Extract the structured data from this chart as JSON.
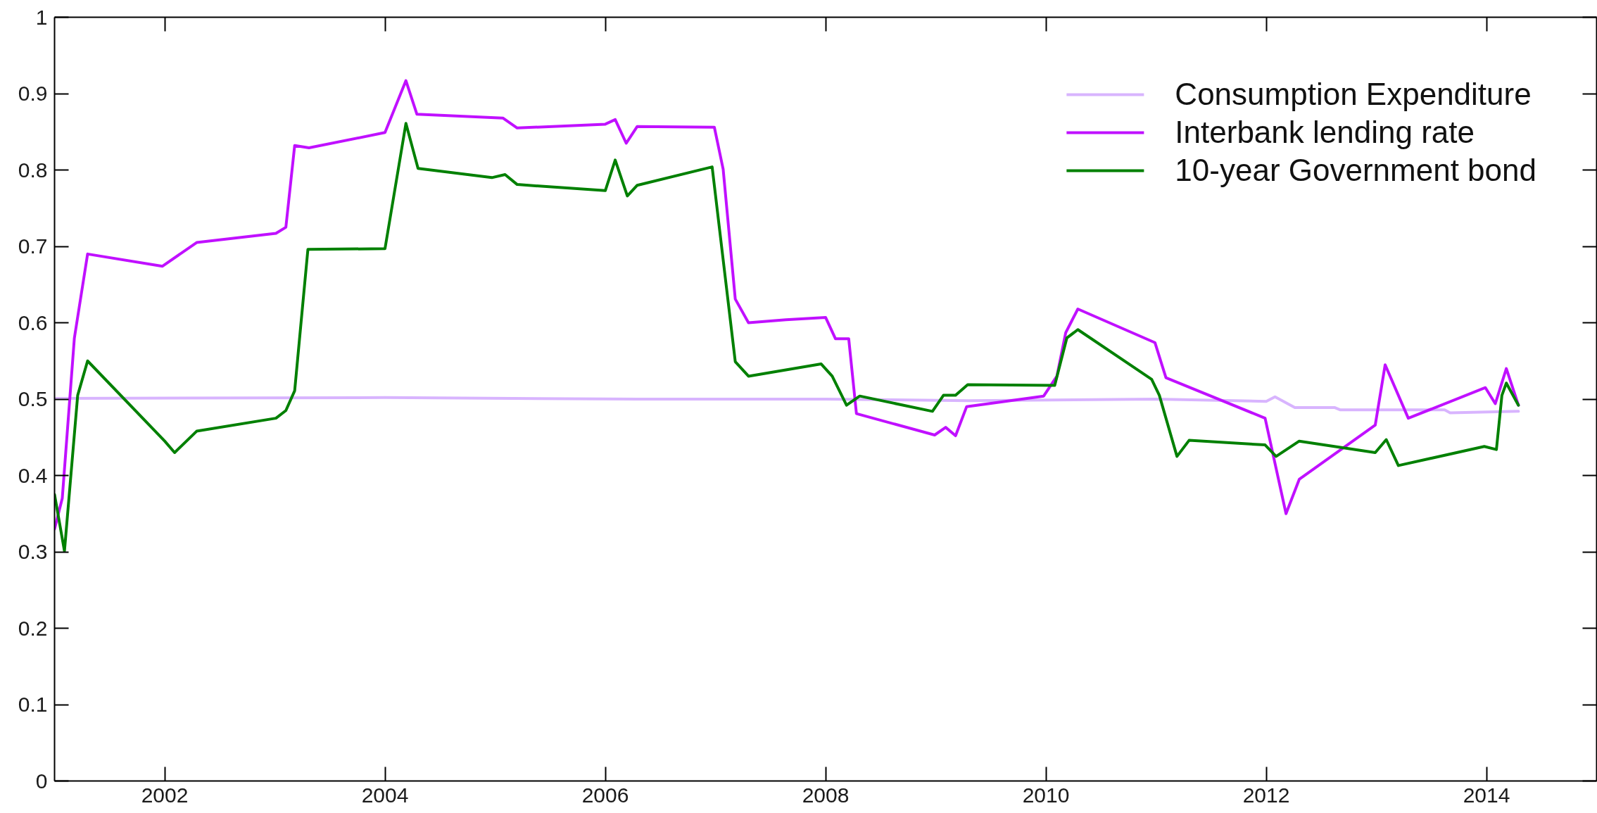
{
  "chart_data": {
    "type": "line",
    "xlim": [
      2001,
      2015
    ],
    "ylim": [
      0,
      1
    ],
    "xticks": [
      2002,
      2004,
      2006,
      2008,
      2010,
      2012,
      2014
    ],
    "yticks": [
      0,
      0.1,
      0.2,
      0.3,
      0.4,
      0.5,
      0.6,
      0.7,
      0.8,
      0.9,
      1
    ],
    "legend": "top right",
    "line_style": "solid",
    "series": [
      {
        "name": "Consumption Expenditure",
        "color": "#d8b4fe",
        "x": [
          2001.0,
          2004.0,
          2006.3,
          2008.0,
          2009.3,
          2011.0,
          2012.0,
          2012.08,
          2012.26,
          2012.62,
          2012.67,
          2013.62,
          2013.67,
          2014.29
        ],
        "values": [
          0.501,
          0.502,
          0.5,
          0.5,
          0.498,
          0.5,
          0.497,
          0.503,
          0.489,
          0.489,
          0.486,
          0.486,
          0.482,
          0.484
        ]
      },
      {
        "name": "Interbank lending rate",
        "color": "#c010ff",
        "x": [
          2001.0,
          2001.07,
          2001.18,
          2001.3,
          2001.98,
          2002.29,
          2003.01,
          2003.1,
          2003.18,
          2003.31,
          2004.0,
          2004.19,
          2004.29,
          2005.07,
          2005.2,
          2006.0,
          2006.09,
          2006.19,
          2006.29,
          2006.99,
          2007.07,
          2007.18,
          2007.3,
          2007.64,
          2008.0,
          2008.09,
          2008.21,
          2008.28,
          2008.99,
          2009.09,
          2009.18,
          2009.28,
          2009.98,
          2010.1,
          2010.18,
          2010.29,
          2010.99,
          2011.09,
          2011.99,
          2012.18,
          2012.3,
          2012.99,
          2013.08,
          2013.29,
          2013.99,
          2014.08,
          2014.18,
          2014.29
        ],
        "values": [
          0.33,
          0.37,
          0.58,
          0.69,
          0.674,
          0.705,
          0.717,
          0.725,
          0.832,
          0.829,
          0.849,
          0.917,
          0.873,
          0.868,
          0.855,
          0.86,
          0.866,
          0.835,
          0.857,
          0.856,
          0.801,
          0.631,
          0.6,
          0.604,
          0.607,
          0.579,
          0.579,
          0.481,
          0.453,
          0.463,
          0.452,
          0.49,
          0.504,
          0.53,
          0.587,
          0.618,
          0.574,
          0.528,
          0.475,
          0.35,
          0.395,
          0.466,
          0.545,
          0.475,
          0.515,
          0.494,
          0.54,
          0.492
        ]
      },
      {
        "name": "10-year Government bond",
        "color": "#008000",
        "x": [
          2001.0,
          2001.09,
          2001.21,
          2001.3,
          2002.0,
          2002.09,
          2002.29,
          2003.01,
          2003.1,
          2003.18,
          2003.3,
          2004.0,
          2004.19,
          2004.3,
          2004.97,
          2005.09,
          2005.2,
          2006.0,
          2006.09,
          2006.2,
          2006.29,
          2006.97,
          2007.1,
          2007.18,
          2007.3,
          2007.96,
          2008.06,
          2008.19,
          2008.31,
          2008.97,
          2009.07,
          2009.18,
          2009.29,
          2010.08,
          2010.19,
          2010.29,
          2010.96,
          2011.03,
          2011.19,
          2011.3,
          2011.99,
          2012.09,
          2012.3,
          2012.99,
          2013.09,
          2013.2,
          2013.98,
          2014.09,
          2014.14,
          2014.18,
          2014.29
        ],
        "values": [
          0.375,
          0.301,
          0.505,
          0.55,
          0.445,
          0.43,
          0.458,
          0.475,
          0.485,
          0.511,
          0.696,
          0.697,
          0.861,
          0.802,
          0.79,
          0.794,
          0.781,
          0.773,
          0.813,
          0.766,
          0.78,
          0.804,
          0.646,
          0.549,
          0.53,
          0.546,
          0.53,
          0.492,
          0.504,
          0.484,
          0.505,
          0.505,
          0.519,
          0.518,
          0.58,
          0.591,
          0.526,
          0.505,
          0.425,
          0.446,
          0.44,
          0.425,
          0.445,
          0.43,
          0.447,
          0.413,
          0.438,
          0.434,
          0.505,
          0.521,
          0.492
        ]
      }
    ]
  }
}
